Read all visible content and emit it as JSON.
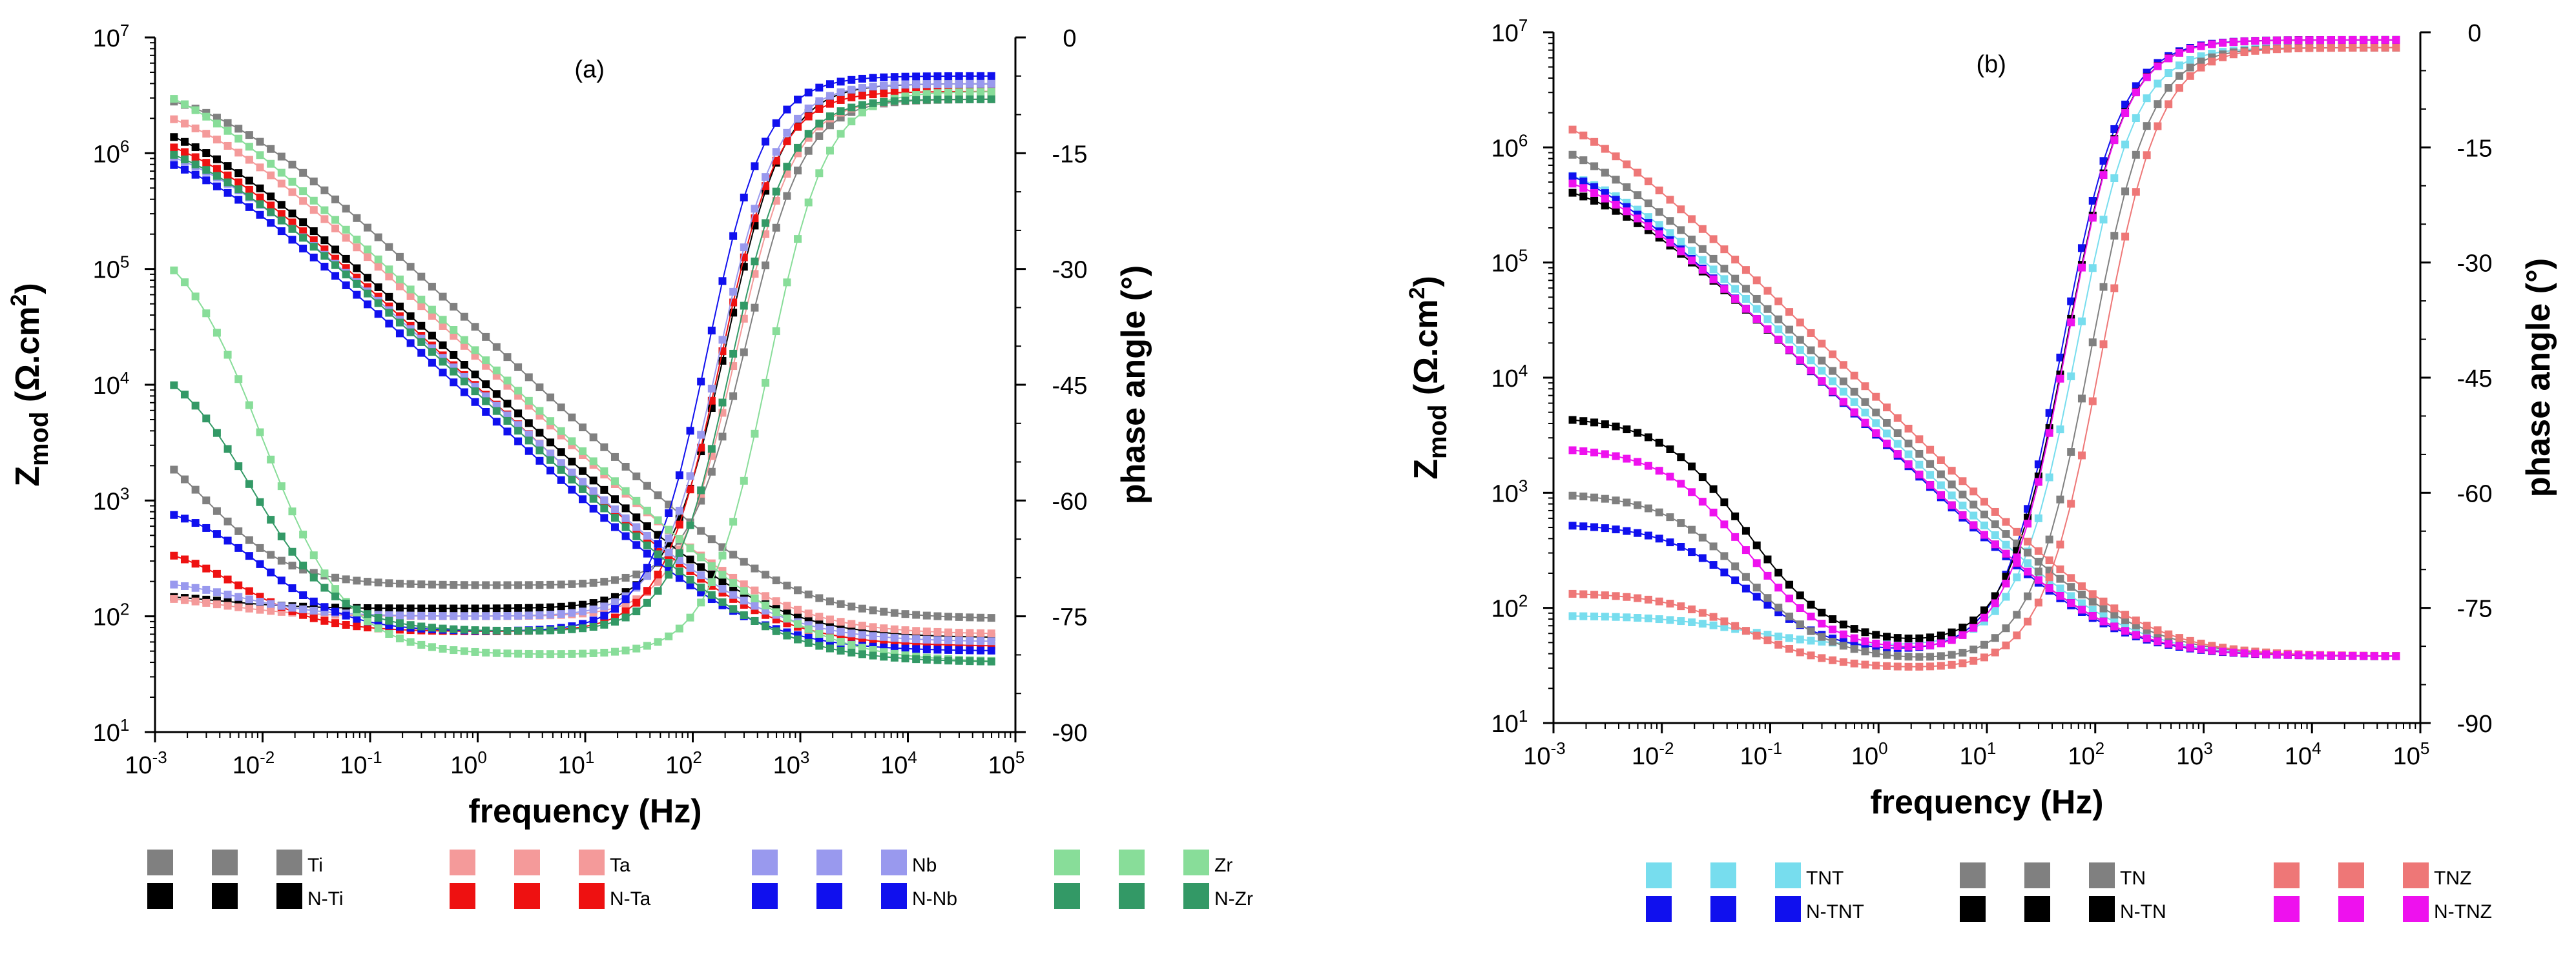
{
  "chart_data": [
    {
      "type": "line",
      "panel_label": "(a)",
      "xlabel": "frequency (Hz)",
      "ylabel_left": {
        "main": "Z",
        "sub": "mod",
        "unit": " (Ω.cm",
        "unit_sup": "2",
        "unit_close": ")"
      },
      "ylabel_right": "phase angle (°)",
      "x_scale": "log",
      "xlim": [
        0.001,
        100000
      ],
      "x_ticks": [
        {
          "base": "10",
          "exp": "-3"
        },
        {
          "base": "10",
          "exp": "-2"
        },
        {
          "base": "10",
          "exp": "-1"
        },
        {
          "base": "10",
          "exp": "0"
        },
        {
          "base": "10",
          "exp": "1"
        },
        {
          "base": "10",
          "exp": "2"
        },
        {
          "base": "10",
          "exp": "3"
        },
        {
          "base": "10",
          "exp": "4"
        },
        {
          "base": "10",
          "exp": "5"
        }
      ],
      "y_left_scale": "log",
      "ylim_left": [
        10,
        10000000
      ],
      "y_left_ticks": [
        {
          "base": "10",
          "exp": "1"
        },
        {
          "base": "10",
          "exp": "2"
        },
        {
          "base": "10",
          "exp": "3"
        },
        {
          "base": "10",
          "exp": "4"
        },
        {
          "base": "10",
          "exp": "5"
        },
        {
          "base": "10",
          "exp": "6"
        },
        {
          "base": "10",
          "exp": "7"
        }
      ],
      "ylim_right": [
        -90,
        0
      ],
      "y_right_ticks": [
        "0",
        "-15",
        "-30",
        "-45",
        "-60",
        "-75",
        "-90"
      ],
      "legend_position": "bottom",
      "series": [
        {
          "name": "Ti",
          "color": "#808080",
          "impedance": {
            "z_high": 95,
            "z_low": 4000000,
            "corner_hz": 700,
            "slope": 0.88
          },
          "phase": {
            "theta_max": -71,
            "f_peak": 0.15,
            "rise": 25,
            "lf_end": -49,
            "hf_end": -8
          }
        },
        {
          "name": "N-Ti",
          "color": "#000000",
          "impedance": {
            "z_high": 65,
            "z_low": 2600000,
            "corner_hz": 450,
            "slope": 0.85
          },
          "phase": {
            "theta_max": -74,
            "f_peak": 0.2,
            "rise": 20,
            "lf_end": -72,
            "hf_end": -6
          }
        },
        {
          "name": "Ta",
          "color": "#f49a9a",
          "impedance": {
            "z_high": 70,
            "z_low": 3300000,
            "corner_hz": 550,
            "slope": 0.87
          },
          "phase": {
            "theta_max": -75,
            "f_peak": 0.2,
            "rise": 20,
            "lf_end": -72,
            "hf_end": -8
          }
        },
        {
          "name": "N-Ta",
          "color": "#ee1111",
          "impedance": {
            "z_high": 55,
            "z_low": 2000000,
            "corner_hz": 400,
            "slope": 0.86
          },
          "phase": {
            "theta_max": -77,
            "f_peak": 0.3,
            "rise": 20,
            "lf_end": -65,
            "hf_end": -7
          }
        },
        {
          "name": "Nb",
          "color": "#9999ee",
          "impedance": {
            "z_high": 60,
            "z_low": 1600000,
            "corner_hz": 400,
            "slope": 0.84
          },
          "phase": {
            "theta_max": -75,
            "f_peak": 0.3,
            "rise": 20,
            "lf_end": -70,
            "hf_end": -6
          }
        },
        {
          "name": "N-Nb",
          "color": "#1010ee",
          "impedance": {
            "z_high": 50,
            "z_low": 1400000,
            "corner_hz": 300,
            "slope": 0.86
          },
          "phase": {
            "theta_max": -77,
            "f_peak": 0.5,
            "rise": 20,
            "lf_end": -60,
            "hf_end": -5
          }
        },
        {
          "name": "Zr",
          "color": "#88dd99",
          "impedance": {
            "z_high": 40,
            "z_low": 6000000,
            "corner_hz": 1100,
            "slope": 0.88
          },
          "phase": {
            "theta_max": -80,
            "f_peak": 0.5,
            "rise": 40,
            "lf_end": -24,
            "hf_end": -7
          }
        },
        {
          "name": "N-Zr",
          "color": "#339966",
          "impedance": {
            "z_high": 40,
            "z_low": 1700000,
            "corner_hz": 500,
            "slope": 0.86
          },
          "phase": {
            "theta_max": -77,
            "f_peak": 0.4,
            "rise": 30,
            "lf_end": -40,
            "hf_end": -8
          }
        }
      ],
      "legend": [
        {
          "label": "Ti",
          "color": "#808080"
        },
        {
          "label": "N-Ti",
          "color": "#000000"
        },
        {
          "label": "Ta",
          "color": "#f49a9a"
        },
        {
          "label": "N-Ta",
          "color": "#ee1111"
        },
        {
          "label": "Nb",
          "color": "#9999ee"
        },
        {
          "label": "N-Nb",
          "color": "#1010ee"
        },
        {
          "label": "Zr",
          "color": "#88dd99"
        },
        {
          "label": "N-Zr",
          "color": "#339966"
        }
      ]
    },
    {
      "type": "line",
      "panel_label": "(b)",
      "xlabel": "frequency (Hz)",
      "ylabel_left": {
        "main": "Z",
        "sub": "mod",
        "unit": " (Ω.cm",
        "unit_sup": "2",
        "unit_close": ")"
      },
      "ylabel_right": "phase angle (°)",
      "x_scale": "log",
      "xlim": [
        0.001,
        100000
      ],
      "x_ticks": [
        {
          "base": "10",
          "exp": "-3"
        },
        {
          "base": "10",
          "exp": "-2"
        },
        {
          "base": "10",
          "exp": "-1"
        },
        {
          "base": "10",
          "exp": "0"
        },
        {
          "base": "10",
          "exp": "1"
        },
        {
          "base": "10",
          "exp": "2"
        },
        {
          "base": "10",
          "exp": "3"
        },
        {
          "base": "10",
          "exp": "4"
        },
        {
          "base": "10",
          "exp": "5"
        }
      ],
      "y_left_scale": "log",
      "ylim_left": [
        10,
        10000000
      ],
      "y_left_ticks": [
        {
          "base": "10",
          "exp": "1"
        },
        {
          "base": "10",
          "exp": "2"
        },
        {
          "base": "10",
          "exp": "3"
        },
        {
          "base": "10",
          "exp": "4"
        },
        {
          "base": "10",
          "exp": "5"
        },
        {
          "base": "10",
          "exp": "6"
        },
        {
          "base": "10",
          "exp": "7"
        }
      ],
      "ylim_right": [
        -90,
        0
      ],
      "y_right_ticks": [
        "0",
        "-15",
        "-30",
        "-45",
        "-60",
        "-75",
        "-90"
      ],
      "legend_position": "bottom",
      "series": [
        {
          "name": "TNT",
          "color": "#77ddee",
          "impedance": {
            "z_high": 38,
            "z_low": 900000,
            "corner_hz": 150,
            "slope": 0.92
          },
          "phase": {
            "theta_max": -80,
            "f_peak": 3,
            "rise": 200,
            "lf_end": -76,
            "hf_end": -2
          }
        },
        {
          "name": "N-TNT",
          "color": "#1010ee",
          "impedance": {
            "z_high": 38,
            "z_low": 1000000,
            "corner_hz": 110,
            "slope": 0.93
          },
          "phase": {
            "theta_max": -81,
            "f_peak": 3,
            "rise": 120,
            "lf_end": -64,
            "hf_end": -1
          }
        },
        {
          "name": "TN",
          "color": "#808080",
          "impedance": {
            "z_high": 38,
            "z_low": 1700000,
            "corner_hz": 200,
            "slope": 0.91
          },
          "phase": {
            "theta_max": -82,
            "f_peak": 3,
            "rise": 300,
            "lf_end": -60,
            "hf_end": -2
          }
        },
        {
          "name": "N-TN",
          "color": "#000000",
          "impedance": {
            "z_high": 38,
            "z_low": 600000,
            "corner_hz": 120,
            "slope": 0.92
          },
          "phase": {
            "theta_max": -80,
            "f_peak": 3,
            "rise": 150,
            "lf_end": -50,
            "hf_end": -1
          }
        },
        {
          "name": "TNZ",
          "color": "#ee7777",
          "impedance": {
            "z_high": 38,
            "z_low": 3000000,
            "corner_hz": 250,
            "slope": 0.93
          },
          "phase": {
            "theta_max": -83,
            "f_peak": 3,
            "rise": 280,
            "lf_end": -73,
            "hf_end": -2
          }
        },
        {
          "name": "N-TNZ",
          "color": "#ee11ee",
          "impedance": {
            "z_high": 38,
            "z_low": 800000,
            "corner_hz": 120,
            "slope": 0.92
          },
          "phase": {
            "theta_max": -81,
            "f_peak": 3,
            "rise": 120,
            "lf_end": -54,
            "hf_end": -1
          }
        }
      ],
      "legend": [
        {
          "label": "TNT",
          "color": "#77ddee"
        },
        {
          "label": "N-TNT",
          "color": "#1010ee"
        },
        {
          "label": "TN",
          "color": "#808080"
        },
        {
          "label": "N-TN",
          "color": "#000000"
        },
        {
          "label": "TNZ",
          "color": "#ee7777"
        },
        {
          "label": "N-TNZ",
          "color": "#ee11ee"
        }
      ]
    }
  ]
}
